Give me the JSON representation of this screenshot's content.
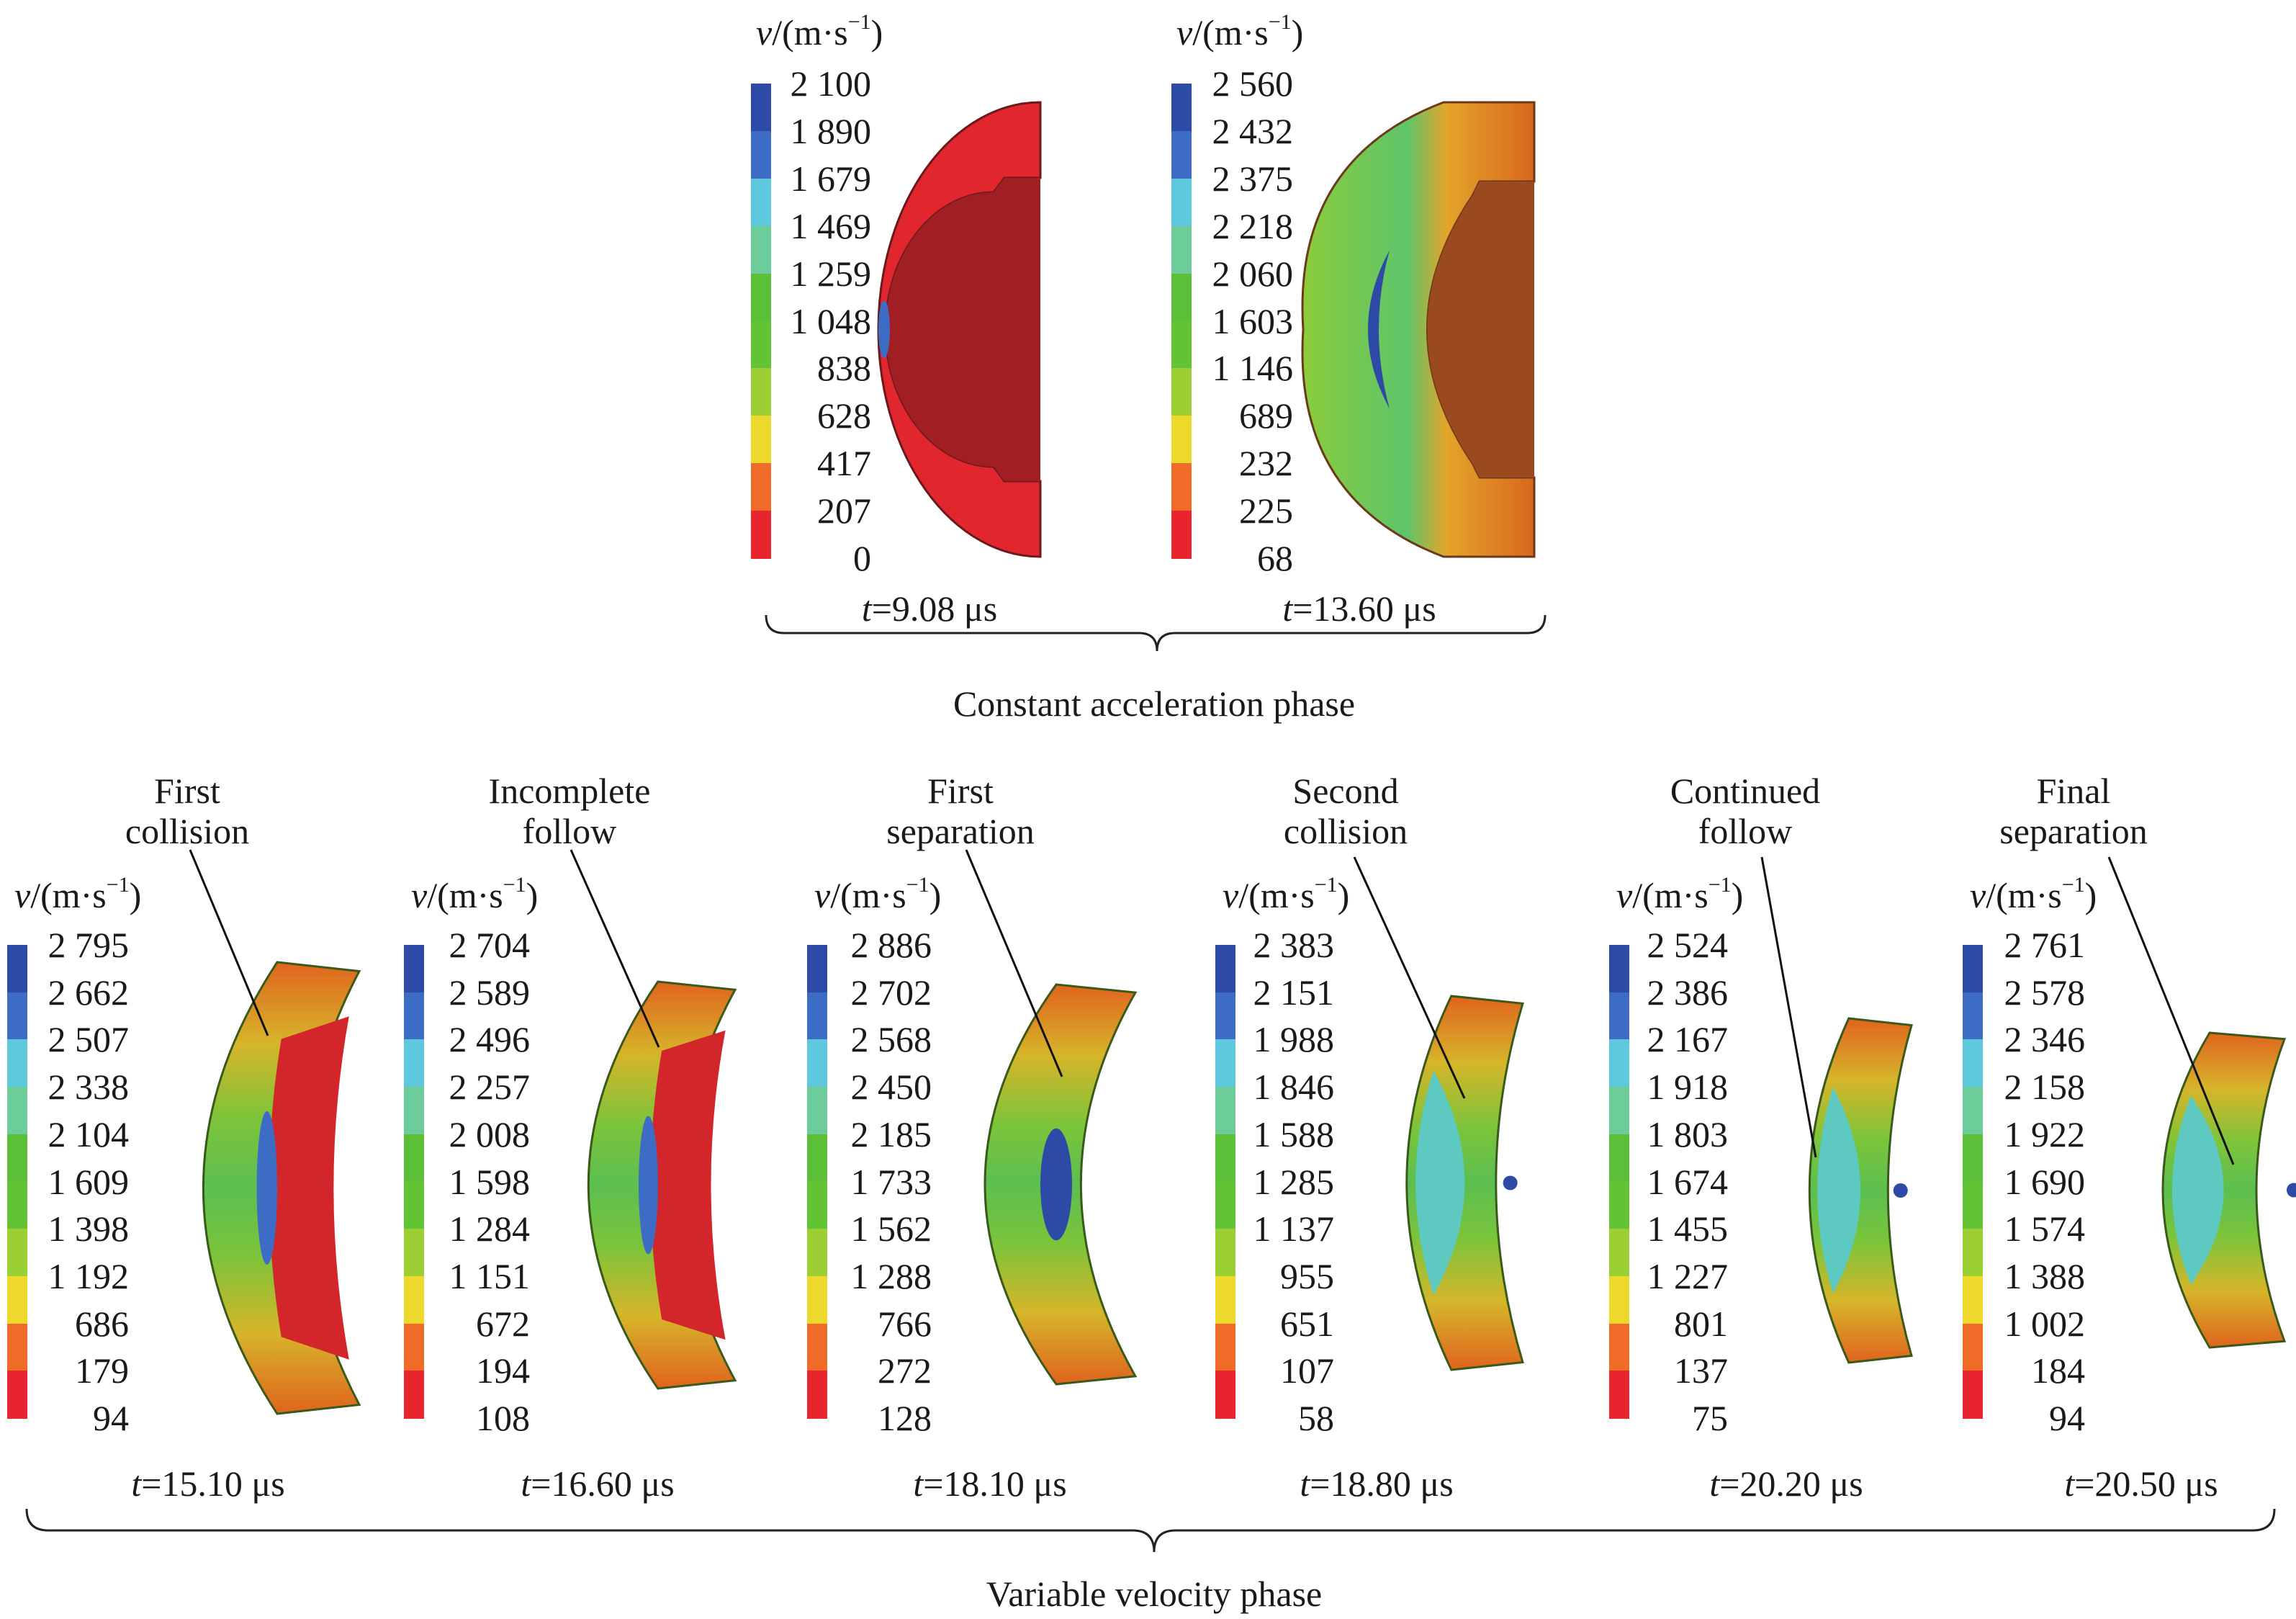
{
  "colorbar_colors": [
    "#2c4aa6",
    "#3d6cc4",
    "#5ec9dc",
    "#6ccc9a",
    "#5cbf38",
    "#62c434",
    "#9ccf34",
    "#ecd92c",
    "#f06a28",
    "#e8252e"
  ],
  "unit": {
    "var": "v",
    "base": "/(m·s",
    "exp": "−1",
    "close": ")"
  },
  "top_panels": [
    {
      "values": [
        "2 100",
        "1 890",
        "1 679",
        "1 469",
        "1 259",
        "1 048",
        "838",
        "628",
        "417",
        "207",
        "0"
      ],
      "time": {
        "var": "t",
        "value": "=9.08 μs"
      }
    },
    {
      "values": [
        "2 560",
        "2 432",
        "2 375",
        "2 218",
        "2 060",
        "1 603",
        "1 146",
        "689",
        "232",
        "225",
        "68"
      ],
      "time": {
        "var": "t",
        "value": "=13.60 μs"
      }
    }
  ],
  "top_phase_label": "Constant acceleration phase",
  "bottom_panels": [
    {
      "title": [
        "First",
        "collision"
      ],
      "values": [
        "2 795",
        "2 662",
        "2 507",
        "2 338",
        "2 104",
        "1 609",
        "1 398",
        "1 192",
        "686",
        "179",
        "94"
      ],
      "time": {
        "var": "t",
        "value": "=15.10 μs"
      }
    },
    {
      "title": [
        "Incomplete",
        "follow"
      ],
      "values": [
        "2 704",
        "2 589",
        "2 496",
        "2 257",
        "2 008",
        "1 598",
        "1 284",
        "1 151",
        "672",
        "194",
        "108"
      ],
      "time": {
        "var": "t",
        "value": "=16.60 μs"
      }
    },
    {
      "title": [
        "First",
        "separation"
      ],
      "values": [
        "2 886",
        "2 702",
        "2 568",
        "2 450",
        "2 185",
        "1 733",
        "1 562",
        "1 288",
        "766",
        "272",
        "128"
      ],
      "time": {
        "var": "t",
        "value": "=18.10 μs"
      }
    },
    {
      "title": [
        "Second",
        "collision"
      ],
      "values": [
        "2 383",
        "2 151",
        "1 988",
        "1 846",
        "1 588",
        "1 285",
        "1 137",
        "955",
        "651",
        "107",
        "58"
      ],
      "time": {
        "var": "t",
        "value": "=18.80 μs"
      }
    },
    {
      "title": [
        "Continued",
        "follow"
      ],
      "values": [
        "2 524",
        "2 386",
        "2 167",
        "1 918",
        "1 803",
        "1 674",
        "1 455",
        "1 227",
        "801",
        "137",
        "75"
      ],
      "time": {
        "var": "t",
        "value": "=20.20 μs"
      }
    },
    {
      "title": [
        "Final",
        "separation"
      ],
      "values": [
        "2 761",
        "2 578",
        "2 346",
        "2 158",
        "1 922",
        "1 690",
        "1 574",
        "1 388",
        "1 002",
        "184",
        "94"
      ],
      "time": {
        "var": "t",
        "value": "=20.50 μs"
      }
    }
  ],
  "bottom_phase_label": "Variable velocity phase"
}
